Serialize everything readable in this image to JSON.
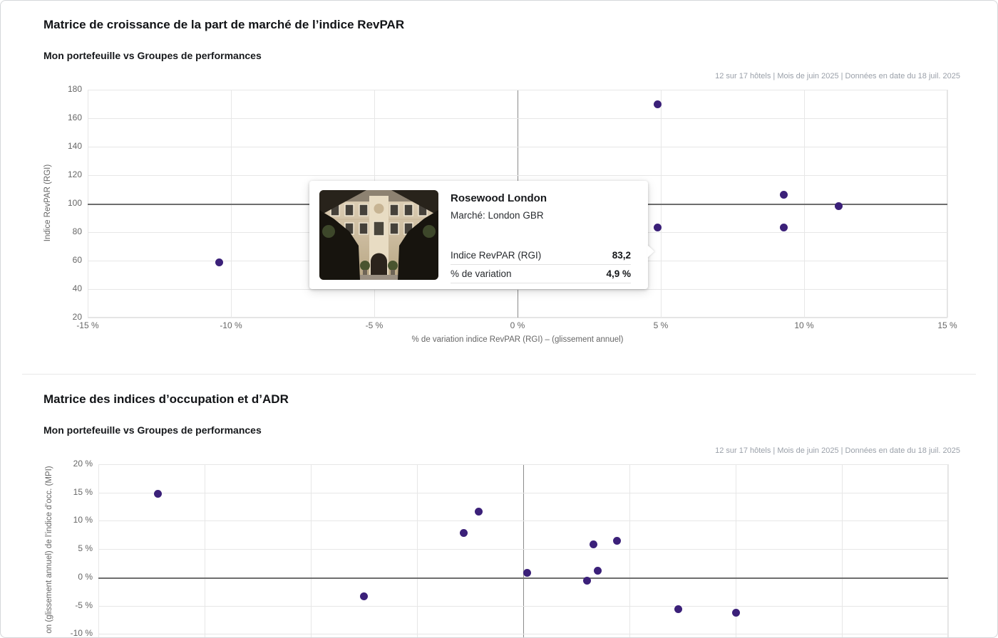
{
  "colors": {
    "point": "#3b2079",
    "grid": "#e7e7e7",
    "reference_line": "#6e6e6e",
    "muted_text": "#9aa0a9"
  },
  "tooltip": {
    "hotel_name": "Rosewood London",
    "market": "Marché: London GBR",
    "image": "rosewood-london-hotel-facade-photo",
    "metrics": [
      {
        "label": "Indice RevPAR (RGI)",
        "value": "83,2"
      },
      {
        "label": "% de variation",
        "value": "4,9 %"
      }
    ]
  },
  "chart_data": [
    {
      "type": "scatter",
      "title": "Matrice de croissance de la part de marché de l’indice RevPAR",
      "subtitle": "Mon portefeuille vs Groupes de performances",
      "meta": "12 sur 17 hôtels | Mois de juin 2025 | Données en date du 18 juil. 2025",
      "xlabel": "% de variation indice RevPAR (RGI) – (glissement annuel)",
      "ylabel": "Indice RevPAR (RGI)",
      "xlim": [
        -15,
        15
      ],
      "ylim": [
        20,
        180
      ],
      "grid": true,
      "legend_position": "none",
      "x_ticks": [
        {
          "v": -15,
          "label": "-15 %"
        },
        {
          "v": -10,
          "label": "-10 %"
        },
        {
          "v": -5,
          "label": "-5 %"
        },
        {
          "v": 0,
          "label": "0 %"
        },
        {
          "v": 5,
          "label": "5 %"
        },
        {
          "v": 10,
          "label": "10 %"
        },
        {
          "v": 15,
          "label": "15 %"
        }
      ],
      "y_ticks": [
        {
          "v": 180,
          "label": "180"
        },
        {
          "v": 160,
          "label": "160"
        },
        {
          "v": 140,
          "label": "140"
        },
        {
          "v": 120,
          "label": "120"
        },
        {
          "v": 100,
          "label": "100"
        },
        {
          "v": 80,
          "label": "80"
        },
        {
          "v": 60,
          "label": "60"
        },
        {
          "v": 40,
          "label": "40"
        },
        {
          "v": 20,
          "label": "20"
        }
      ],
      "reference_lines": {
        "x": 0,
        "y": 100
      },
      "points": [
        {
          "x": -10.4,
          "y": 58.8
        },
        {
          "x": 4.9,
          "y": 170
        },
        {
          "x": 4.9,
          "y": 83.2,
          "hotel": "Rosewood London"
        },
        {
          "x": 9.3,
          "y": 106.5
        },
        {
          "x": 9.3,
          "y": 83.5
        },
        {
          "x": 11.2,
          "y": 98.5
        }
      ]
    },
    {
      "type": "scatter",
      "title": "Matrice des indices d’occupation et d’ADR",
      "subtitle": "Mon portefeuille vs Groupes de performances",
      "meta": "12 sur 17 hôtels | Mois de juin 2025 | Données en date du 18 juil. 2025",
      "ylabel_visible": "on (glissement annuel) de l’indice d’occ. (MPI)",
      "xlim": [
        -20,
        20
      ],
      "ylim_visible": [
        -10,
        20
      ],
      "grid": true,
      "legend_position": "none",
      "x_gridlines": [
        -20,
        -15,
        -10,
        -5,
        0,
        5,
        10,
        15,
        20
      ],
      "y_ticks": [
        {
          "v": 20,
          "label": "20 %"
        },
        {
          "v": 15,
          "label": "15 %"
        },
        {
          "v": 10,
          "label": "10 %"
        },
        {
          "v": 5,
          "label": "5 %"
        },
        {
          "v": 0,
          "label": "0 %"
        },
        {
          "v": -5,
          "label": "-5 %"
        },
        {
          "v": -10,
          "label": "-10 %"
        }
      ],
      "reference_lines": {
        "x": 0,
        "y": 0
      },
      "points": [
        {
          "x": -17.2,
          "y": 14.8
        },
        {
          "x": -7.5,
          "y": -3.3
        },
        {
          "x": -2.8,
          "y": 7.9
        },
        {
          "x": -2.1,
          "y": 11.6
        },
        {
          "x": 0.2,
          "y": 0.8
        },
        {
          "x": 3.0,
          "y": -0.6
        },
        {
          "x": 3.3,
          "y": 5.8
        },
        {
          "x": 3.5,
          "y": 1.2
        },
        {
          "x": 4.4,
          "y": 6.5
        },
        {
          "x": 7.3,
          "y": -5.6
        },
        {
          "x": 10.0,
          "y": -6.3
        }
      ]
    }
  ]
}
